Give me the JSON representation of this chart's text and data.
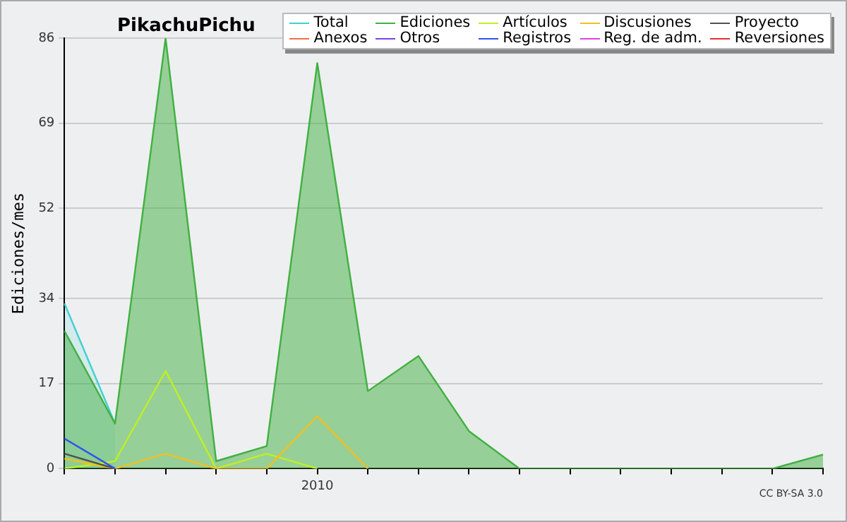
{
  "chart_data": {
    "type": "line",
    "title": "PikachuPichu",
    "ylabel": "Ediciones/mes",
    "categories": [
      null,
      null,
      null,
      null,
      null,
      "2010",
      null,
      null,
      null,
      null,
      null,
      null,
      null,
      null,
      null,
      null
    ],
    "ylim": [
      0,
      86
    ],
    "yticks": [
      0,
      17,
      34,
      52,
      69,
      86
    ],
    "grid": "y",
    "legend": "top right",
    "marker": "none",
    "line_style": "solid",
    "annotations": [
      "CC BY-SA 3.0"
    ],
    "series": [
      {
        "name": "Total",
        "type": "area",
        "color": "#40d0d0",
        "values": [
          33,
          9,
          null,
          null,
          null,
          null,
          null,
          null,
          null,
          null,
          null,
          null,
          null,
          null,
          null,
          null
        ]
      },
      {
        "name": "Ediciones",
        "type": "area",
        "color": "#40b040",
        "values": [
          27.5,
          9,
          86,
          1.5,
          4.5,
          81,
          15.5,
          22.5,
          7.5,
          0,
          0,
          0,
          0,
          0,
          0,
          2.8
        ]
      },
      {
        "name": "Artículos",
        "type": "line",
        "color": "#c0f020",
        "values": [
          0,
          1.5,
          19.5,
          0,
          3,
          0,
          null,
          null,
          null,
          null,
          null,
          null,
          null,
          null,
          null,
          null
        ]
      },
      {
        "name": "Discusiones",
        "type": "line",
        "color": "#f0c020",
        "values": [
          2,
          0,
          3,
          0,
          0,
          10.5,
          0,
          null,
          null,
          null,
          null,
          null,
          null,
          null,
          null,
          null
        ]
      },
      {
        "name": "Proyecto",
        "type": "line",
        "color": "#505050",
        "values": [
          3,
          0,
          null,
          null,
          null,
          null,
          null,
          null,
          null,
          null,
          null,
          null,
          null,
          null,
          null,
          null
        ]
      },
      {
        "name": "Anexos",
        "type": "line",
        "color": "#f07040",
        "values": [
          null,
          null,
          null,
          null,
          null,
          null,
          null,
          null,
          null,
          null,
          null,
          null,
          null,
          null,
          null,
          null
        ]
      },
      {
        "name": "Otros",
        "type": "line",
        "color": "#8040e0",
        "values": [
          null,
          null,
          null,
          null,
          null,
          null,
          null,
          null,
          null,
          null,
          null,
          null,
          null,
          null,
          null,
          null
        ]
      },
      {
        "name": "Registros",
        "type": "line",
        "color": "#3050f0",
        "values": [
          6,
          0,
          null,
          null,
          null,
          null,
          null,
          null,
          null,
          null,
          null,
          null,
          null,
          null,
          null,
          null
        ]
      },
      {
        "name": "Reg. de adm.",
        "type": "line",
        "color": "#e040e0",
        "values": [
          null,
          null,
          null,
          null,
          null,
          null,
          null,
          null,
          null,
          null,
          null,
          null,
          null,
          null,
          null,
          null
        ]
      },
      {
        "name": "Reversiones",
        "type": "line",
        "color": "#e03030",
        "values": [
          null,
          null,
          null,
          null,
          null,
          null,
          null,
          null,
          null,
          null,
          null,
          null,
          null,
          null,
          null,
          null
        ]
      }
    ]
  }
}
